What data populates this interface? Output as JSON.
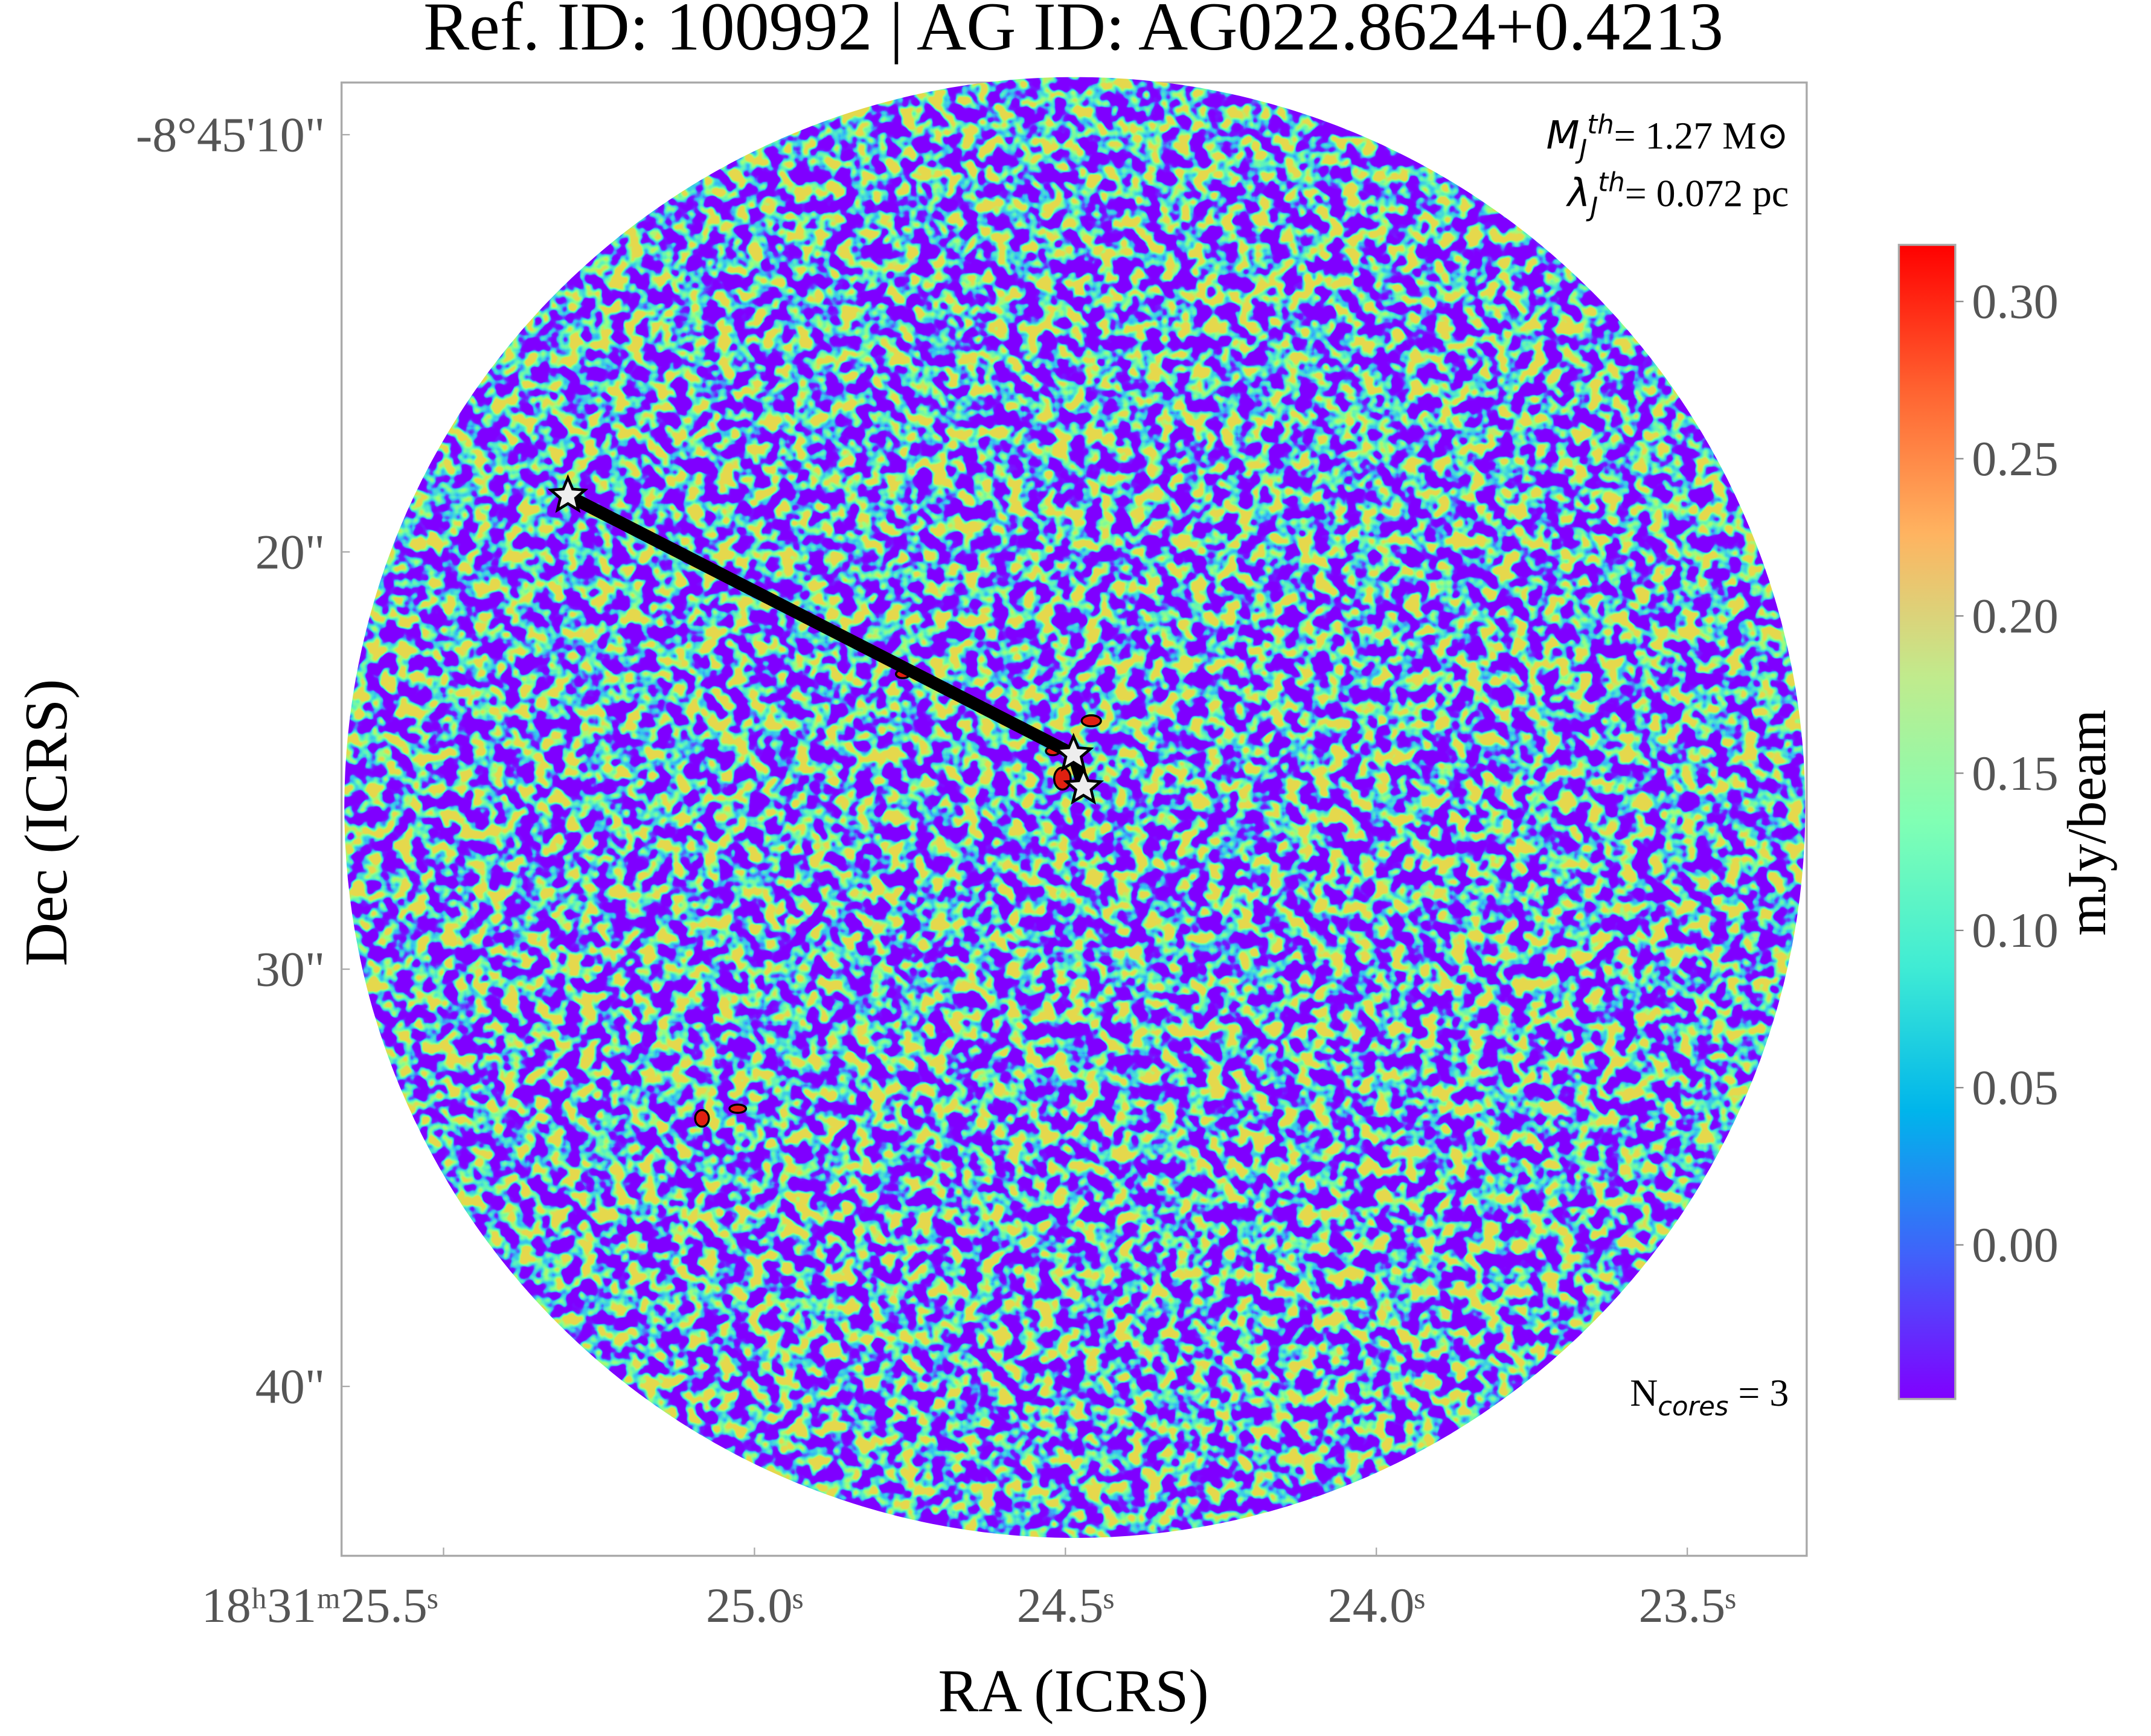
{
  "chart_data": {
    "type": "image",
    "title": "Ref. ID: 100992 | AG ID: AG022.8624+0.4213",
    "xlabel": "RA (ICRS)",
    "ylabel": "Dec (ICRS)",
    "xlim": [
      25.664,
      23.308
    ],
    "ylim": [
      44.06,
      8.75
    ],
    "xticks": [
      {
        "value": 25.5,
        "label": "18ʰ31ᵐ25.5ˢ"
      },
      {
        "value": 25.0,
        "label": "25.0ˢ"
      },
      {
        "value": 24.5,
        "label": "24.5ˢ"
      },
      {
        "value": 24.0,
        "label": "24.0ˢ"
      },
      {
        "value": 23.5,
        "label": "23.5ˢ"
      }
    ],
    "yticks": [
      {
        "value": 10,
        "label": "-8°45'10\""
      },
      {
        "value": 20,
        "label": "20\""
      },
      {
        "value": 30,
        "label": "30\""
      },
      {
        "value": 40,
        "label": "40\""
      }
    ],
    "colorbar": {
      "label": "mJy/beam",
      "colormap": "rainbow",
      "clim": [
        -0.049,
        0.318
      ],
      "ticks": [
        {
          "value": 0,
          "label": "0.00"
        },
        0.05,
        {
          "value": 0.1,
          "label": "0.10"
        },
        0.15,
        {
          "value": 0.2,
          "label": "0.20"
        },
        0.25,
        {
          "value": 0.3,
          "label": "0.30"
        }
      ]
    },
    "cores": {
      "x": [
        25.3,
        24.487,
        24.471
      ],
      "y": [
        18.65,
        24.85,
        25.64
      ]
    },
    "annotations": {
      "jeans_mass": {
        "symbol": "M",
        "sub": "J",
        "sup": "th",
        "text": "= 1.27 M⊙"
      },
      "jeans_length": {
        "symbol": "λ",
        "sub": "J",
        "sup": "th",
        "text": "= 0.072 pc"
      },
      "ncores": {
        "symbol": "N",
        "sub": "cores",
        "text": " = 3"
      }
    }
  }
}
